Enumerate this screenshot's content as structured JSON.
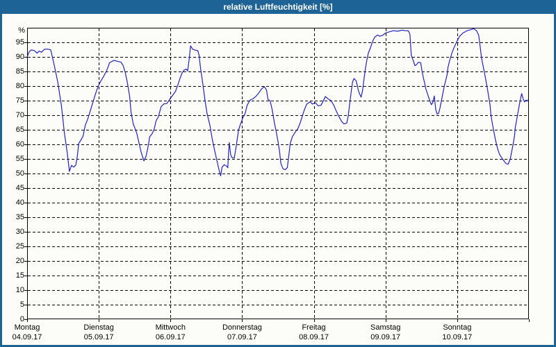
{
  "window": {
    "title": "relative Luftfeuchtigkeit [%]"
  },
  "colors": {
    "titlebar_bg": "#1d6396",
    "titlebar_text": "#ffffff",
    "window_border": "#1d6396",
    "background": "#fcfdf8",
    "grid": "#000000",
    "axis_text": "#000000",
    "line": "#2121bf"
  },
  "chart_data": {
    "type": "line",
    "title": "relative Luftfeuchtigkeit [%]",
    "ylabel": "%",
    "ylim": [
      0,
      100
    ],
    "y_ticks": [
      0,
      5,
      10,
      15,
      20,
      25,
      30,
      35,
      40,
      45,
      50,
      55,
      60,
      65,
      70,
      75,
      80,
      85,
      90,
      95
    ],
    "grid": "dashed",
    "legend": "none",
    "x_unit": "days (t = Tage seit Montag 04.09.17 00:00)",
    "x_range_days": [
      0,
      7
    ],
    "x_categories": [
      {
        "name": "Montag",
        "date": "04.09.17"
      },
      {
        "name": "Dienstag",
        "date": "05.09.17"
      },
      {
        "name": "Mittwoch",
        "date": "06.09.17"
      },
      {
        "name": "Donnerstag",
        "date": "07.09.17"
      },
      {
        "name": "Freitag",
        "date": "08.09.17"
      },
      {
        "name": "Samstag",
        "date": "09.09.17"
      },
      {
        "name": "Sonntag",
        "date": "10.09.17"
      }
    ],
    "series": [
      {
        "name": "relative Luftfeuchtigkeit [%]",
        "color": "#2121bf",
        "points": [
          [
            0.0,
            90.0
          ],
          [
            0.03,
            91.8
          ],
          [
            0.06,
            92.4
          ],
          [
            0.1,
            92.2
          ],
          [
            0.14,
            91.3
          ],
          [
            0.17,
            92.0
          ],
          [
            0.2,
            91.6
          ],
          [
            0.24,
            92.6
          ],
          [
            0.29,
            92.7
          ],
          [
            0.33,
            92.4
          ],
          [
            0.38,
            87.0
          ],
          [
            0.43,
            81.0
          ],
          [
            0.48,
            73.0
          ],
          [
            0.52,
            64.0
          ],
          [
            0.56,
            57.0
          ],
          [
            0.59,
            50.7
          ],
          [
            0.62,
            52.8
          ],
          [
            0.65,
            52.2
          ],
          [
            0.68,
            52.9
          ],
          [
            0.7,
            55.8
          ],
          [
            0.72,
            60.3
          ],
          [
            0.75,
            61.5
          ],
          [
            0.78,
            62.8
          ],
          [
            0.81,
            66.4
          ],
          [
            0.85,
            69.0
          ],
          [
            0.89,
            72.2
          ],
          [
            0.92,
            74.6
          ],
          [
            0.95,
            77.0
          ],
          [
            0.98,
            79.2
          ],
          [
            1.0,
            80.3
          ],
          [
            1.03,
            81.8
          ],
          [
            1.06,
            83.0
          ],
          [
            1.1,
            84.8
          ],
          [
            1.13,
            86.6
          ],
          [
            1.15,
            88.0
          ],
          [
            1.21,
            88.8
          ],
          [
            1.26,
            88.5
          ],
          [
            1.31,
            88.2
          ],
          [
            1.34,
            87.0
          ],
          [
            1.37,
            84.6
          ],
          [
            1.4,
            81.0
          ],
          [
            1.43,
            76.5
          ],
          [
            1.45,
            71.0
          ],
          [
            1.48,
            67.0
          ],
          [
            1.5,
            65.8
          ],
          [
            1.53,
            63.8
          ],
          [
            1.56,
            60.6
          ],
          [
            1.59,
            57.4
          ],
          [
            1.63,
            54.3
          ],
          [
            1.66,
            56.0
          ],
          [
            1.69,
            59.5
          ],
          [
            1.71,
            62.6
          ],
          [
            1.74,
            63.5
          ],
          [
            1.77,
            65.0
          ],
          [
            1.8,
            68.2
          ],
          [
            1.83,
            69.4
          ],
          [
            1.87,
            73.0
          ],
          [
            1.91,
            73.9
          ],
          [
            1.95,
            74.0
          ],
          [
            1.99,
            75.5
          ],
          [
            2.03,
            76.8
          ],
          [
            2.07,
            78.2
          ],
          [
            2.1,
            80.2
          ],
          [
            2.13,
            82.4
          ],
          [
            2.16,
            84.4
          ],
          [
            2.19,
            85.5
          ],
          [
            2.22,
            85.8
          ],
          [
            2.24,
            85.2
          ],
          [
            2.26,
            89.0
          ],
          [
            2.28,
            93.8
          ],
          [
            2.31,
            92.6
          ],
          [
            2.35,
            92.3
          ],
          [
            2.38,
            92.2
          ],
          [
            2.4,
            90.5
          ],
          [
            2.42,
            86.0
          ],
          [
            2.45,
            81.0
          ],
          [
            2.48,
            75.4
          ],
          [
            2.51,
            70.6
          ],
          [
            2.55,
            66.6
          ],
          [
            2.58,
            62.2
          ],
          [
            2.61,
            58.6
          ],
          [
            2.65,
            54.2
          ],
          [
            2.68,
            51.0
          ],
          [
            2.7,
            49.2
          ],
          [
            2.72,
            52.2
          ],
          [
            2.75,
            53.0
          ],
          [
            2.78,
            52.6
          ],
          [
            2.8,
            52.0
          ],
          [
            2.81,
            57.0
          ],
          [
            2.82,
            60.6
          ],
          [
            2.84,
            56.4
          ],
          [
            2.86,
            55.4
          ],
          [
            2.89,
            55.3
          ],
          [
            2.92,
            59.8
          ],
          [
            2.95,
            65.0
          ],
          [
            2.98,
            67.2
          ],
          [
            3.01,
            69.2
          ],
          [
            3.04,
            70.5
          ],
          [
            3.07,
            73.4
          ],
          [
            3.11,
            75.2
          ],
          [
            3.15,
            75.6
          ],
          [
            3.19,
            76.4
          ],
          [
            3.23,
            77.6
          ],
          [
            3.27,
            79.0
          ],
          [
            3.31,
            79.8
          ],
          [
            3.34,
            78.6
          ],
          [
            3.36,
            75.4
          ],
          [
            3.39,
            74.9
          ],
          [
            3.42,
            71.8
          ],
          [
            3.45,
            67.4
          ],
          [
            3.47,
            65.0
          ],
          [
            3.5,
            61.0
          ],
          [
            3.52,
            57.8
          ],
          [
            3.54,
            53.5
          ],
          [
            3.57,
            51.6
          ],
          [
            3.6,
            51.3
          ],
          [
            3.63,
            52.0
          ],
          [
            3.65,
            56.0
          ],
          [
            3.67,
            60.2
          ],
          [
            3.7,
            62.6
          ],
          [
            3.74,
            64.2
          ],
          [
            3.78,
            65.5
          ],
          [
            3.81,
            67.4
          ],
          [
            3.84,
            69.8
          ],
          [
            3.87,
            72.0
          ],
          [
            3.9,
            73.8
          ],
          [
            3.93,
            74.3
          ],
          [
            3.95,
            74.6
          ],
          [
            3.98,
            73.8
          ],
          [
            4.02,
            74.3
          ],
          [
            4.06,
            73.2
          ],
          [
            4.1,
            73.4
          ],
          [
            4.14,
            75.3
          ],
          [
            4.16,
            76.4
          ],
          [
            4.2,
            75.6
          ],
          [
            4.24,
            75.0
          ],
          [
            4.28,
            73.3
          ],
          [
            4.31,
            71.6
          ],
          [
            4.35,
            69.5
          ],
          [
            4.39,
            67.8
          ],
          [
            4.42,
            67.0
          ],
          [
            4.46,
            67.3
          ],
          [
            4.48,
            69.8
          ],
          [
            4.5,
            73.8
          ],
          [
            4.52,
            77.8
          ],
          [
            4.54,
            81.4
          ],
          [
            4.56,
            82.6
          ],
          [
            4.59,
            81.8
          ],
          [
            4.61,
            79.8
          ],
          [
            4.62,
            78.6
          ],
          [
            4.64,
            77.2
          ],
          [
            4.66,
            76.2
          ],
          [
            4.68,
            78.5
          ],
          [
            4.7,
            82.5
          ],
          [
            4.72,
            86.0
          ],
          [
            4.74,
            89.0
          ],
          [
            4.76,
            91.3
          ],
          [
            4.79,
            93.2
          ],
          [
            4.82,
            95.3
          ],
          [
            4.85,
            96.8
          ],
          [
            4.89,
            97.5
          ],
          [
            4.92,
            97.1
          ],
          [
            4.96,
            97.4
          ],
          [
            5.0,
            98.2
          ],
          [
            5.05,
            98.6
          ],
          [
            5.11,
            99.0
          ],
          [
            5.17,
            98.8
          ],
          [
            5.23,
            99.2
          ],
          [
            5.28,
            99.0
          ],
          [
            5.32,
            98.9
          ],
          [
            5.34,
            97.8
          ],
          [
            5.36,
            90.5
          ],
          [
            5.39,
            88.6
          ],
          [
            5.41,
            87.0
          ],
          [
            5.43,
            87.3
          ],
          [
            5.46,
            88.2
          ],
          [
            5.49,
            88.0
          ],
          [
            5.51,
            85.0
          ],
          [
            5.53,
            82.6
          ],
          [
            5.55,
            80.6
          ],
          [
            5.56,
            79.2
          ],
          [
            5.58,
            77.8
          ],
          [
            5.6,
            76.2
          ],
          [
            5.62,
            74.8
          ],
          [
            5.64,
            73.6
          ],
          [
            5.66,
            74.4
          ],
          [
            5.68,
            76.6
          ],
          [
            5.7,
            72.0
          ],
          [
            5.72,
            70.4
          ],
          [
            5.74,
            70.6
          ],
          [
            5.76,
            72.5
          ],
          [
            5.78,
            75.0
          ],
          [
            5.8,
            77.5
          ],
          [
            5.82,
            80.0
          ],
          [
            5.84,
            82.0
          ],
          [
            5.86,
            84.0
          ],
          [
            5.87,
            86.2
          ],
          [
            5.89,
            88.3
          ],
          [
            5.91,
            90.0
          ],
          [
            5.93,
            91.6
          ],
          [
            5.96,
            93.4
          ],
          [
            5.99,
            95.0
          ],
          [
            6.03,
            97.0
          ],
          [
            6.08,
            98.2
          ],
          [
            6.13,
            98.9
          ],
          [
            6.18,
            99.3
          ],
          [
            6.23,
            99.7
          ],
          [
            6.27,
            99.0
          ],
          [
            6.3,
            97.4
          ],
          [
            6.32,
            93.5
          ],
          [
            6.34,
            89.6
          ],
          [
            6.36,
            87.0
          ],
          [
            6.38,
            84.6
          ],
          [
            6.4,
            82.0
          ],
          [
            6.42,
            79.2
          ],
          [
            6.44,
            76.3
          ],
          [
            6.46,
            73.2
          ],
          [
            6.47,
            70.2
          ],
          [
            6.49,
            67.2
          ],
          [
            6.51,
            64.5
          ],
          [
            6.53,
            62.0
          ],
          [
            6.55,
            59.8
          ],
          [
            6.57,
            58.0
          ],
          [
            6.59,
            56.6
          ],
          [
            6.62,
            55.4
          ],
          [
            6.65,
            54.4
          ],
          [
            6.68,
            53.4
          ],
          [
            6.71,
            53.2
          ],
          [
            6.74,
            55.0
          ],
          [
            6.76,
            57.5
          ],
          [
            6.78,
            60.0
          ],
          [
            6.8,
            63.0
          ],
          [
            6.81,
            65.8
          ],
          [
            6.83,
            68.5
          ],
          [
            6.85,
            71.2
          ],
          [
            6.87,
            74.0
          ],
          [
            6.89,
            76.5
          ],
          [
            6.9,
            77.4
          ],
          [
            6.92,
            75.6
          ],
          [
            6.94,
            74.6
          ],
          [
            6.96,
            75.2
          ],
          [
            6.98,
            74.8
          ],
          [
            6.99,
            75.3
          ]
        ]
      }
    ]
  }
}
